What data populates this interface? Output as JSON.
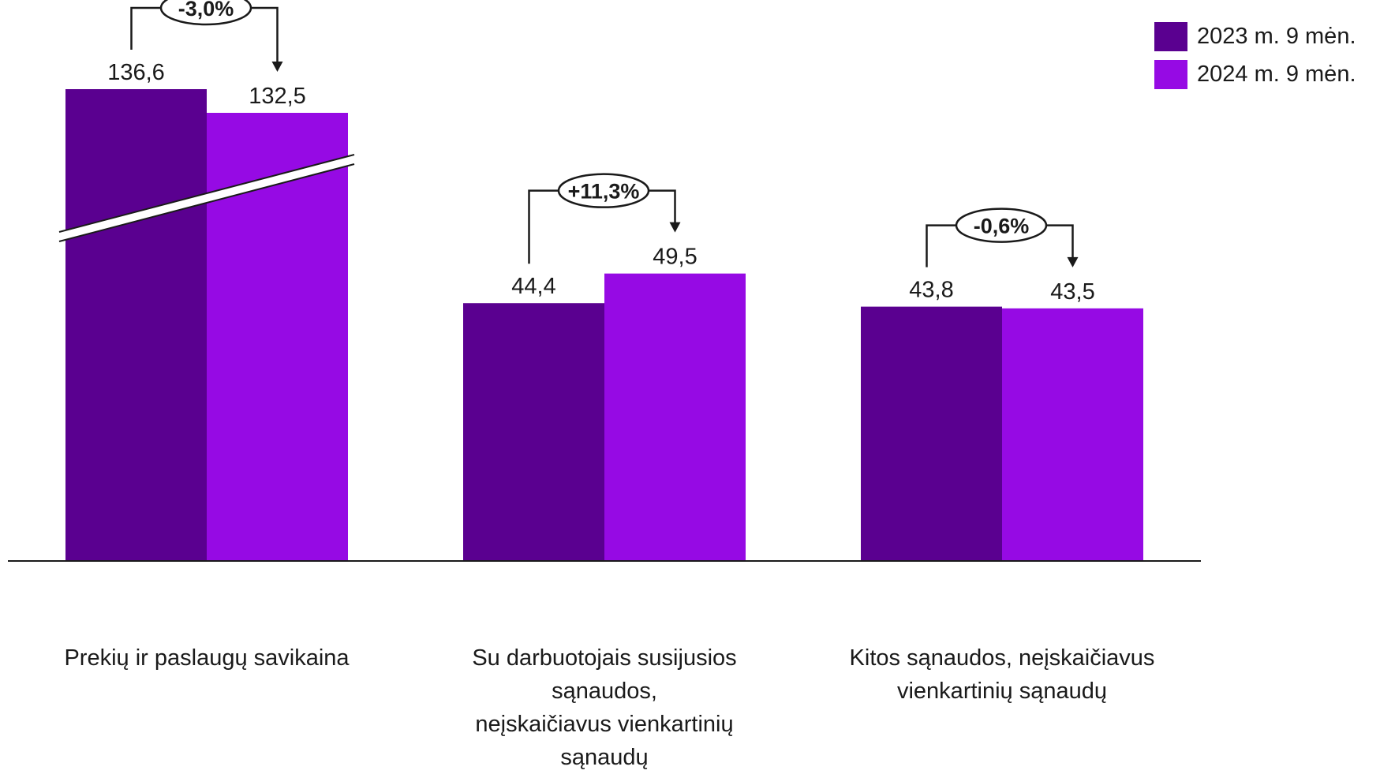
{
  "chart_data": {
    "type": "bar",
    "categories": [
      [
        "Prekių ir paslaugų savikaina"
      ],
      [
        "Su darbuotojais susijusios sąnaudos,",
        "neįskaičiavus vienkartinių sąnaudų"
      ],
      [
        "Kitos sąnaudos, neįskaičiavus",
        "vienkartinių sąnaudų"
      ]
    ],
    "series": [
      {
        "name": "2023 m. 9 mėn.",
        "values": [
          136.6,
          44.4,
          43.8
        ],
        "labels": [
          "136,6",
          "44,4",
          "43,8"
        ],
        "color": "#5a0090"
      },
      {
        "name": "2024 m. 9 mėn.",
        "values": [
          132.5,
          49.5,
          43.5
        ],
        "labels": [
          "132,5",
          "49,5",
          "43,5"
        ],
        "color": "#960ae4"
      }
    ],
    "changes": [
      "-3,0%",
      "+11,3%",
      "-0,6%"
    ],
    "axis_break": "first category",
    "legend_position": "top-right",
    "title": "",
    "xlabel": "",
    "ylabel": ""
  }
}
